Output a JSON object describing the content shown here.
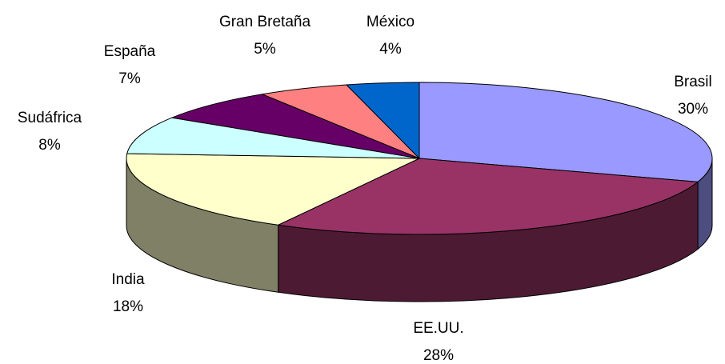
{
  "chart_data": {
    "type": "pie3d",
    "categories": [
      "Brasil",
      "EE.UU.",
      "India",
      "Sudáfrica",
      "España",
      "Gran Bretaña",
      "México"
    ],
    "values": [
      30,
      28,
      18,
      8,
      7,
      5,
      4
    ],
    "value_labels": [
      "30%",
      "28%",
      "18%",
      "8%",
      "7%",
      "5%",
      "4%"
    ],
    "colors": [
      "#9999ff",
      "#993366",
      "#ffffcc",
      "#ccffff",
      "#660066",
      "#ff8080",
      "#0066cc"
    ]
  }
}
